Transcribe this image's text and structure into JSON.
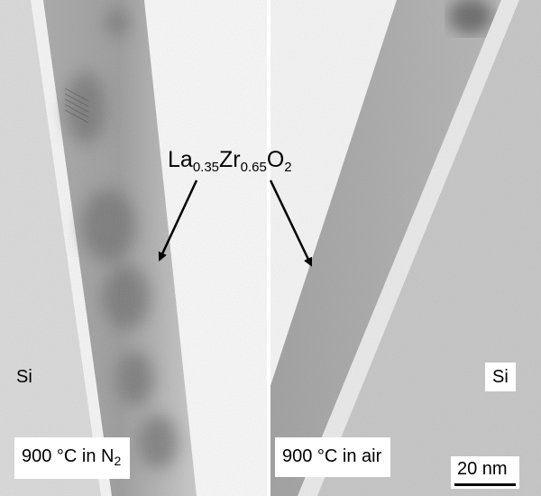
{
  "figure": {
    "compound": {
      "base1": "La",
      "sub1": "0.35",
      "base2": "Zr",
      "sub2": "0.65",
      "base3": "O",
      "sub3": "2"
    },
    "left_panel": {
      "substrate_label": "Si",
      "condition": {
        "prefix": "900 °C in N",
        "subscript": "2"
      }
    },
    "right_panel": {
      "substrate_label": "Si",
      "condition": "900 °C in air"
    },
    "scale_bar": "20 nm"
  }
}
